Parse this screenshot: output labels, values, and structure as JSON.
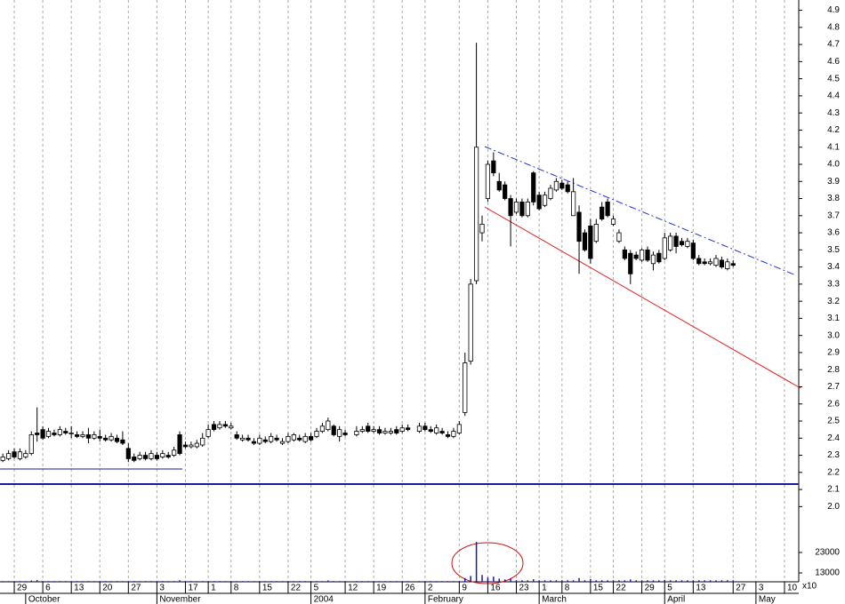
{
  "chart_data": {
    "type": "candlestick",
    "categories": [
      null,
      null,
      "29",
      null,
      null,
      null,
      null,
      "6",
      null,
      null,
      null,
      null,
      "13",
      null,
      null,
      null,
      null,
      "20",
      null,
      null,
      null,
      null,
      "27",
      null,
      null,
      null,
      null,
      "3",
      null,
      null,
      null,
      null,
      "17",
      null,
      null,
      null,
      "1",
      null,
      null,
      null,
      "8",
      null,
      null,
      null,
      null,
      "15",
      null,
      null,
      null,
      null,
      "22",
      null,
      null,
      null,
      "5",
      null,
      null,
      null,
      null,
      null,
      "12",
      null,
      null,
      null,
      null,
      "19",
      null,
      null,
      null,
      null,
      "26",
      null,
      null,
      null,
      "2",
      null,
      null,
      null,
      null,
      null,
      "9",
      null,
      null,
      null,
      null,
      "16",
      null,
      null,
      null,
      null,
      "23",
      null,
      null,
      null,
      "1",
      null,
      null,
      null,
      "8",
      null,
      null,
      null,
      null,
      "15",
      null,
      null,
      null,
      "22",
      null,
      null,
      null,
      null,
      "29",
      null,
      null,
      null,
      "5",
      null,
      null,
      null,
      null,
      "13",
      null,
      null,
      null,
      null,
      null,
      null,
      "27",
      null,
      null,
      null,
      "3",
      null,
      null,
      null,
      null,
      "10",
      null,
      null
    ],
    "month_labels": [
      null,
      null,
      null,
      null,
      "October",
      null,
      null,
      null,
      null,
      null,
      null,
      null,
      null,
      null,
      null,
      null,
      null,
      null,
      null,
      null,
      null,
      null,
      null,
      null,
      null,
      null,
      null,
      "November",
      null,
      null,
      null,
      null,
      null,
      null,
      null,
      null,
      null,
      null,
      null,
      null,
      null,
      null,
      null,
      null,
      null,
      null,
      null,
      null,
      null,
      null,
      null,
      null,
      null,
      null,
      "2004",
      null,
      null,
      null,
      null,
      null,
      null,
      null,
      null,
      null,
      null,
      null,
      null,
      null,
      null,
      null,
      null,
      null,
      null,
      null,
      "February",
      null,
      null,
      null,
      null,
      null,
      null,
      null,
      null,
      null,
      null,
      null,
      null,
      null,
      null,
      null,
      null,
      null,
      null,
      null,
      "March",
      null,
      null,
      null,
      null,
      null,
      null,
      null,
      null,
      null,
      null,
      null,
      null,
      null,
      null,
      null,
      null,
      null,
      null,
      null,
      null,
      null,
      "April",
      null,
      null,
      null,
      null,
      null,
      null,
      null,
      null,
      null,
      null,
      null,
      null,
      null,
      null,
      null,
      "May",
      null,
      null,
      null,
      null,
      null,
      null,
      null
    ],
    "open": [
      2.27,
      2.28,
      2.32,
      2.28,
      2.29,
      2.31,
      2.43,
      2.45,
      2.41,
      2.43,
      2.42,
      2.44,
      2.43,
      2.42,
      2.41,
      2.42,
      2.4,
      2.41,
      2.4,
      2.39,
      2.4,
      2.39,
      2.34,
      2.29,
      2.28,
      2.3,
      2.28,
      2.3,
      2.29,
      2.3,
      2.3,
      2.42,
      2.36,
      2.35,
      2.35,
      2.36,
      2.41,
      2.48,
      2.46,
      2.48,
      2.46,
      2.42,
      2.39,
      2.4,
      2.38,
      2.37,
      2.39,
      2.38,
      2.4,
      2.37,
      2.38,
      2.39,
      2.4,
      2.38,
      2.41,
      2.41,
      2.44,
      2.45,
      2.47,
      2.41,
      2.43,
      null,
      2.42,
      2.44,
      2.47,
      2.44,
      2.45,
      2.43,
      2.43,
      2.45,
      2.44,
      2.46,
      null,
      2.44,
      2.47,
      2.45,
      2.43,
      2.44,
      2.42,
      2.41,
      2.43,
      2.55,
      2.85,
      3.32,
      3.6,
      3.8,
      4.02,
      3.9,
      3.88,
      3.8,
      3.72,
      3.78,
      3.7,
      3.95,
      3.82,
      3.76,
      3.8,
      3.85,
      3.89,
      3.88,
      3.7,
      3.72,
      3.6,
      3.64,
      3.55,
      3.75,
      3.78,
      3.65,
      3.55,
      3.5,
      3.48,
      3.47,
      3.44,
      3.5,
      3.42,
      3.48,
      3.45,
      3.5,
      3.58,
      3.55,
      3.52,
      3.54,
      3.45,
      3.43,
      3.42,
      3.41,
      3.44,
      3.39,
      3.42,
      null,
      null,
      null,
      null,
      null,
      null,
      null,
      null,
      null,
      null,
      null
    ],
    "high": [
      2.31,
      2.33,
      2.34,
      2.34,
      2.33,
      2.44,
      2.58,
      2.47,
      2.46,
      2.45,
      2.47,
      2.46,
      2.47,
      2.44,
      2.44,
      2.46,
      2.44,
      2.45,
      2.42,
      2.43,
      2.42,
      2.44,
      2.37,
      2.31,
      2.32,
      2.32,
      2.33,
      2.32,
      2.33,
      2.32,
      2.35,
      2.44,
      2.38,
      2.38,
      2.39,
      2.43,
      2.48,
      2.5,
      2.5,
      2.5,
      2.49,
      2.44,
      2.42,
      2.42,
      2.4,
      2.42,
      2.41,
      2.43,
      2.42,
      2.4,
      2.43,
      2.43,
      2.42,
      2.43,
      2.43,
      2.46,
      2.49,
      2.52,
      2.48,
      2.47,
      2.45,
      null,
      2.47,
      2.47,
      2.49,
      2.47,
      2.47,
      2.46,
      2.46,
      2.47,
      2.48,
      2.48,
      null,
      2.49,
      2.49,
      2.47,
      2.48,
      2.46,
      2.44,
      2.46,
      2.5,
      2.9,
      3.33,
      4.71,
      3.7,
      4.02,
      4.07,
      3.95,
      3.9,
      3.82,
      3.8,
      3.8,
      3.8,
      3.96,
      3.84,
      3.84,
      3.88,
      3.92,
      3.91,
      3.9,
      3.92,
      3.76,
      3.62,
      3.68,
      3.68,
      3.78,
      3.8,
      3.7,
      3.62,
      3.52,
      3.5,
      3.49,
      3.51,
      3.52,
      3.49,
      3.5,
      3.6,
      3.6,
      3.6,
      3.57,
      3.57,
      3.56,
      3.47,
      3.45,
      3.45,
      3.47,
      3.46,
      3.45,
      3.44,
      null,
      null,
      null,
      null,
      null,
      null,
      null,
      null,
      null,
      null,
      null
    ],
    "low": [
      2.26,
      2.27,
      2.28,
      2.27,
      2.28,
      2.3,
      2.38,
      2.39,
      2.4,
      2.41,
      2.41,
      2.42,
      2.4,
      2.4,
      2.4,
      2.37,
      2.39,
      2.38,
      2.38,
      2.38,
      2.37,
      2.36,
      2.26,
      2.26,
      2.27,
      2.27,
      2.27,
      2.27,
      2.28,
      2.28,
      2.29,
      2.3,
      2.34,
      2.34,
      2.34,
      2.35,
      2.4,
      2.44,
      2.45,
      2.46,
      2.45,
      2.39,
      2.38,
      2.38,
      2.36,
      2.36,
      2.37,
      2.37,
      2.38,
      2.36,
      2.37,
      2.38,
      2.38,
      2.37,
      2.38,
      2.4,
      2.43,
      2.44,
      2.41,
      2.38,
      2.41,
      null,
      2.41,
      2.43,
      2.43,
      2.43,
      2.42,
      2.42,
      2.42,
      2.42,
      2.43,
      2.44,
      null,
      2.43,
      2.44,
      2.43,
      2.42,
      2.42,
      2.4,
      2.4,
      2.42,
      2.53,
      2.83,
      3.3,
      3.55,
      3.78,
      3.93,
      3.84,
      3.79,
      3.52,
      3.71,
      3.69,
      3.69,
      3.76,
      3.73,
      3.75,
      3.79,
      3.84,
      3.85,
      3.83,
      3.7,
      3.36,
      3.49,
      3.42,
      3.54,
      3.67,
      3.69,
      3.64,
      3.54,
      3.44,
      3.3,
      3.44,
      3.43,
      3.43,
      3.38,
      3.42,
      3.44,
      3.49,
      3.48,
      3.52,
      3.51,
      3.44,
      3.41,
      3.41,
      3.41,
      3.4,
      3.39,
      3.38,
      3.4,
      null,
      null,
      null,
      null,
      null,
      null,
      null,
      null,
      null,
      null,
      null
    ],
    "close": [
      2.29,
      2.31,
      2.29,
      2.32,
      2.31,
      2.42,
      2.42,
      2.4,
      2.44,
      2.42,
      2.45,
      2.43,
      2.43,
      2.41,
      2.42,
      2.4,
      2.42,
      2.4,
      2.39,
      2.41,
      2.38,
      2.37,
      2.28,
      2.27,
      2.3,
      2.28,
      2.31,
      2.28,
      2.31,
      2.29,
      2.33,
      2.31,
      2.35,
      2.36,
      2.37,
      2.4,
      2.45,
      2.45,
      2.48,
      2.47,
      2.47,
      2.4,
      2.4,
      2.39,
      2.37,
      2.4,
      2.38,
      2.41,
      2.39,
      2.38,
      2.41,
      2.42,
      2.39,
      2.41,
      2.39,
      2.44,
      2.47,
      2.5,
      2.42,
      2.45,
      2.42,
      null,
      2.44,
      2.45,
      2.44,
      2.45,
      2.43,
      2.44,
      2.44,
      2.43,
      2.46,
      2.45,
      null,
      2.47,
      2.45,
      2.44,
      2.46,
      2.43,
      2.41,
      2.44,
      2.48,
      2.84,
      3.3,
      4.1,
      3.65,
      4.0,
      3.95,
      3.85,
      3.8,
      3.7,
      3.78,
      3.7,
      3.78,
      3.78,
      3.74,
      3.82,
      3.86,
      3.9,
      3.86,
      3.84,
      3.84,
      3.55,
      3.5,
      3.45,
      3.65,
      3.68,
      3.7,
      3.68,
      3.6,
      3.45,
      3.36,
      3.45,
      3.5,
      3.44,
      3.47,
      3.43,
      3.57,
      3.58,
      3.52,
      3.53,
      3.55,
      3.45,
      3.42,
      3.42,
      3.43,
      3.45,
      3.4,
      3.43,
      3.41,
      null,
      null,
      null,
      null,
      null,
      null,
      null,
      null,
      null,
      null,
      null
    ],
    "volume": [
      9000,
      9000,
      9000,
      9000,
      9000,
      9300,
      9500,
      9000,
      9000,
      9000,
      9000,
      9000,
      9000,
      9000,
      9000,
      9000,
      9000,
      9000,
      9000,
      9000,
      9000,
      9000,
      9000,
      9000,
      9000,
      9000,
      9000,
      9000,
      9000,
      9000,
      9000,
      9400,
      9000,
      9000,
      9000,
      9000,
      9000,
      9000,
      9000,
      9000,
      9000,
      9000,
      9000,
      9000,
      9000,
      9000,
      9000,
      9000,
      9000,
      9000,
      9000,
      9000,
      9000,
      9000,
      9000,
      9000,
      9000,
      9300,
      9000,
      9000,
      9000,
      null,
      9000,
      9000,
      9000,
      9000,
      9000,
      9000,
      9000,
      9000,
      9000,
      9000,
      null,
      9000,
      9000,
      9000,
      9000,
      9000,
      9000,
      9000,
      9000,
      10500,
      11500,
      28200,
      12000,
      10800,
      11200,
      10200,
      9800,
      10400,
      9400,
      9400,
      9400,
      9900,
      9400,
      9400,
      9400,
      9400,
      9400,
      9400,
      9400,
      10500,
      9400,
      10000,
      9400,
      9400,
      9400,
      9400,
      9400,
      9400,
      9800,
      9400,
      9400,
      9400,
      9400,
      9400,
      9600,
      9400,
      9400,
      9400,
      9400,
      9400,
      9400,
      9400,
      9400,
      9400,
      9400,
      9400,
      9400,
      null,
      null,
      null,
      null,
      null,
      null,
      null,
      null,
      null,
      null,
      null
    ],
    "ylim": [
      1.95,
      4.96
    ],
    "yticks": [
      {
        "value": 2,
        "label": "2.0"
      },
      2.1,
      2.2,
      2.3,
      2.4,
      2.5,
      2.6,
      2.7,
      2.8,
      2.9,
      {
        "value": 3,
        "label": "3.0"
      },
      3.1,
      3.2,
      3.3,
      3.4,
      3.5,
      3.6,
      3.7,
      3.8,
      3.9,
      {
        "value": 4,
        "label": "4.0"
      },
      4.1,
      4.2,
      4.3,
      4.4,
      4.5,
      4.6,
      4.7,
      4.8,
      4.9
    ],
    "volume_ylim": [
      8650,
      39100
    ],
    "volume_yticks": [
      13000,
      23000
    ],
    "volume_unit": "x10",
    "grid": true,
    "up_color": "#ffffff",
    "down_color": "#000000",
    "volume_color": "#1a1aa0"
  }
}
